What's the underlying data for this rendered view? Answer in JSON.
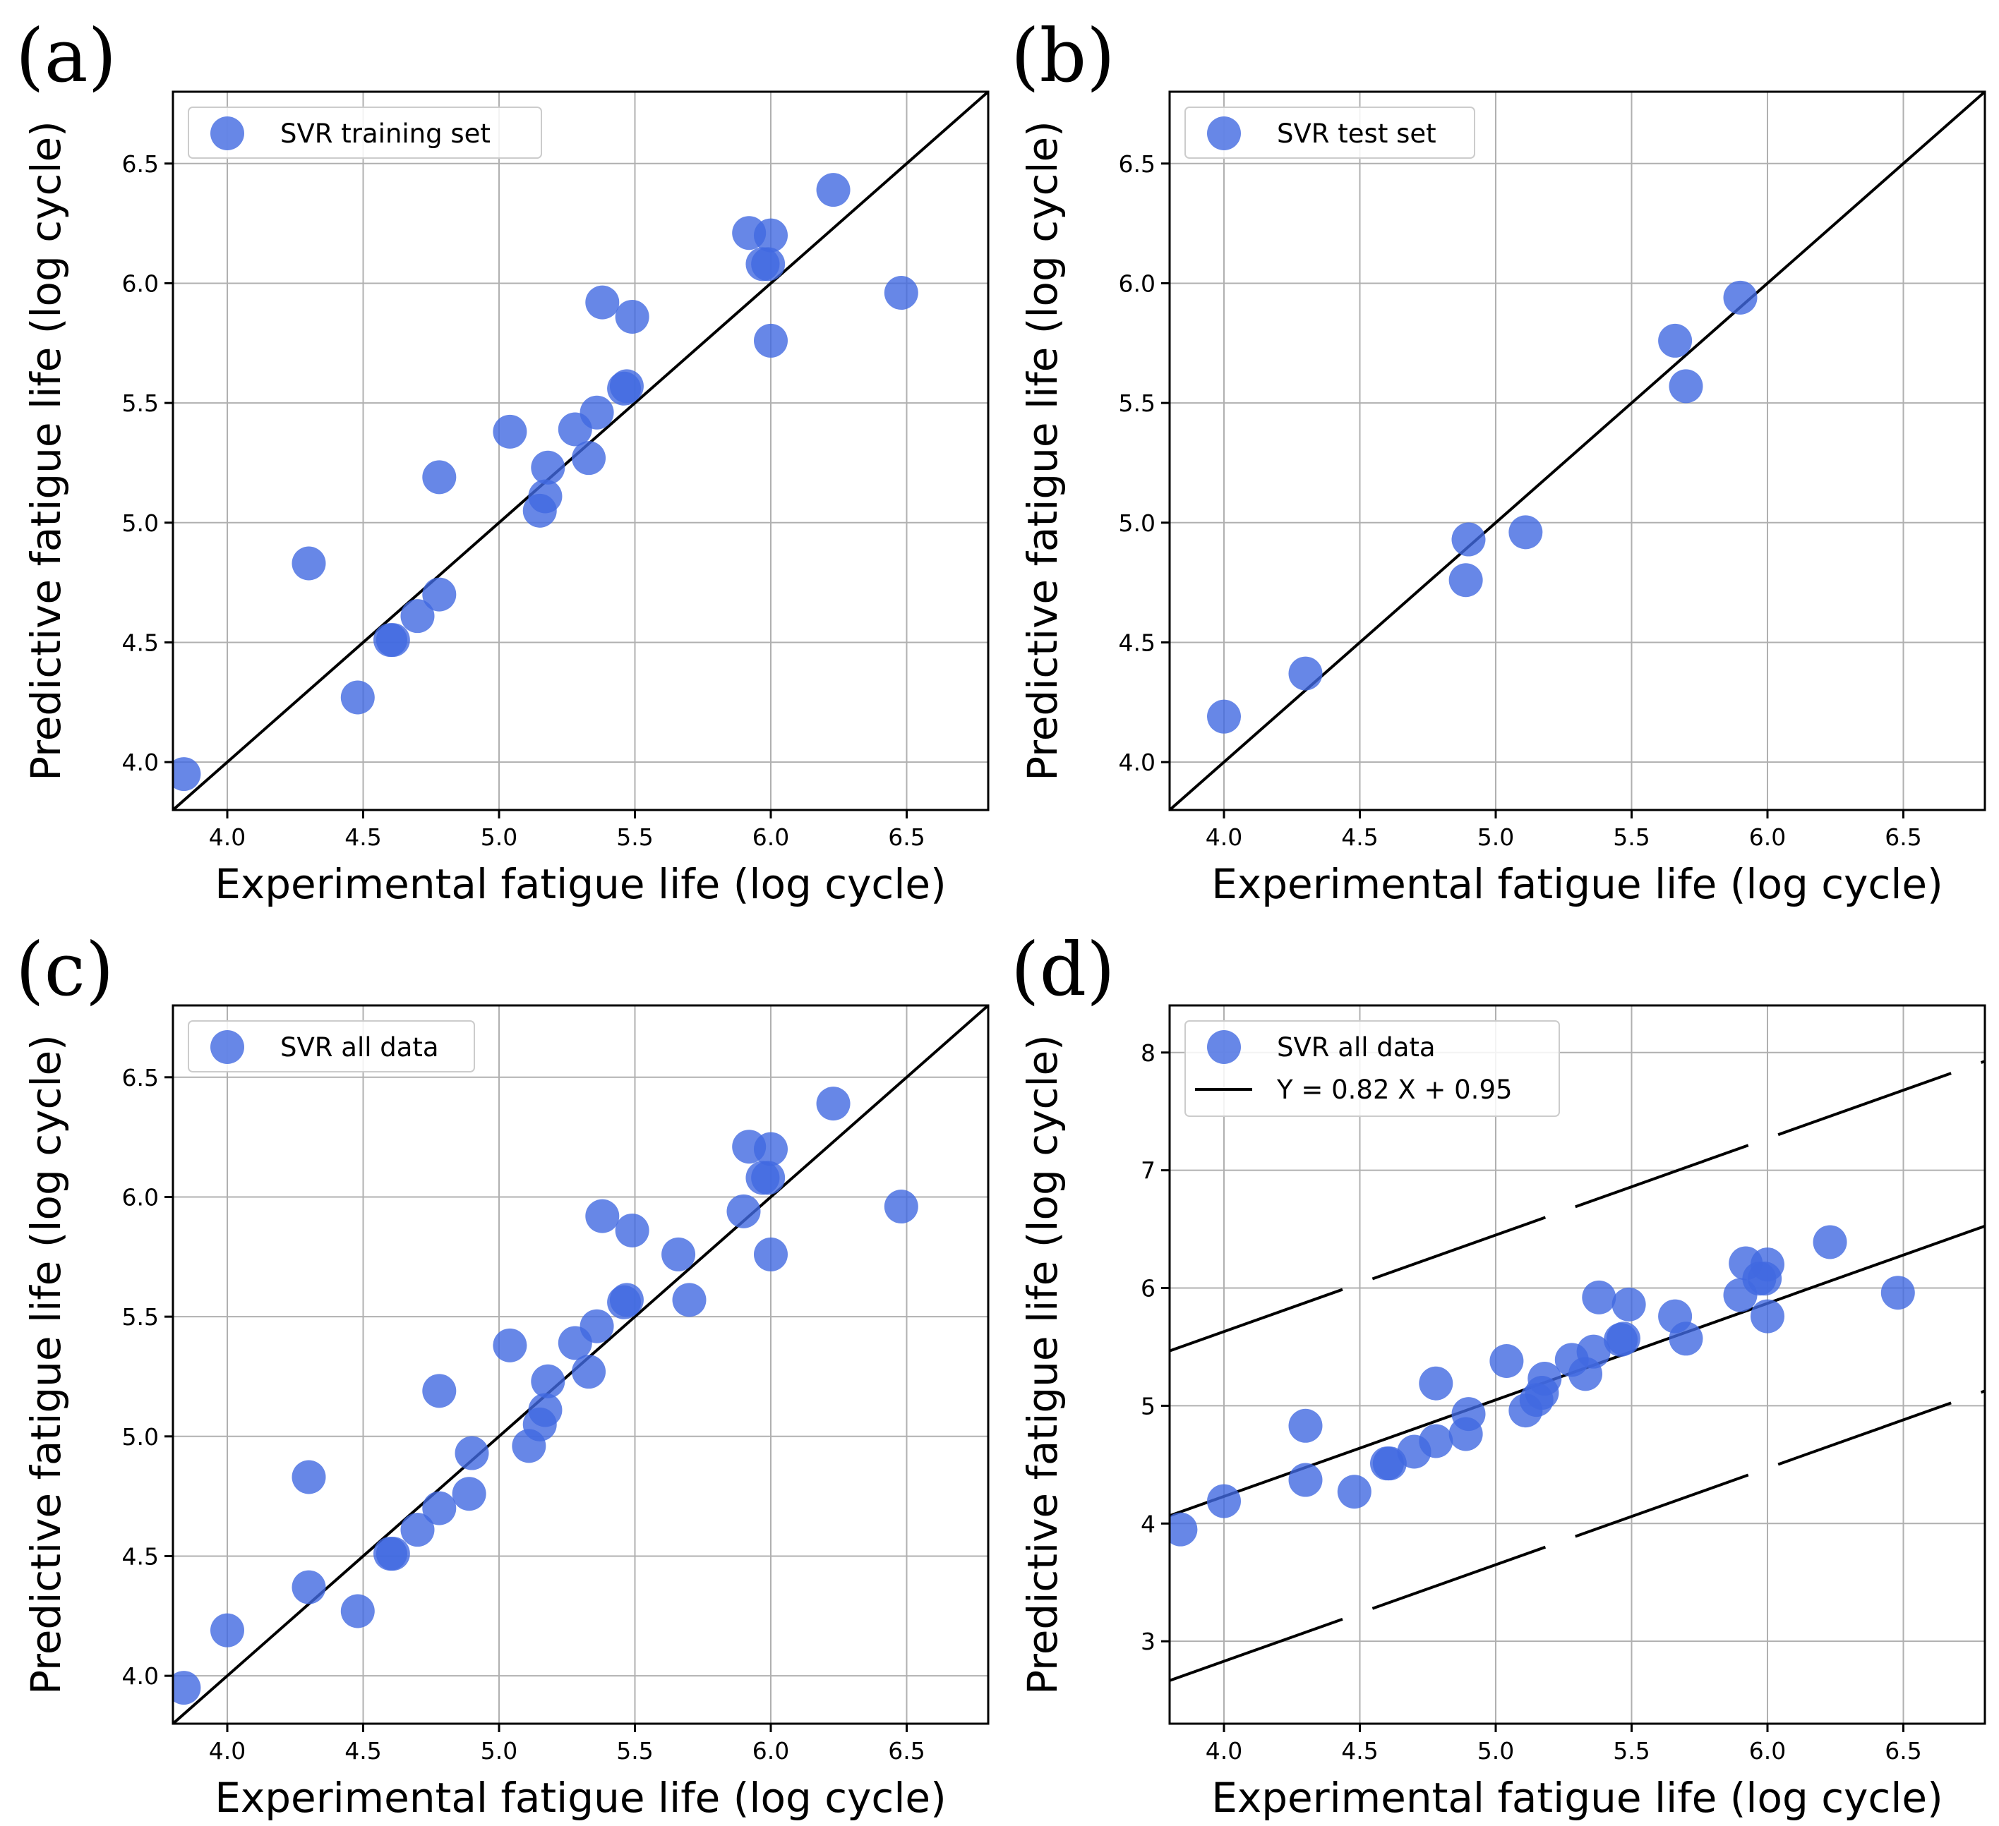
{
  "colors": {
    "point": "#4169e1",
    "line": "#000000",
    "grid": "#b0b0b0"
  },
  "chart_data": [
    {
      "panel": "(a)",
      "type": "scatter",
      "legend": [
        {
          "label": "SVR training set",
          "kind": "marker"
        }
      ],
      "legend_position": "top-left",
      "xlabel": "Experimental fatigue life (log cycle)",
      "ylabel": "Predictive fatigue life (log cycle)",
      "xlim": [
        3.8,
        6.8
      ],
      "ylim": [
        3.8,
        6.8
      ],
      "xticks": [
        "4.0",
        "4.5",
        "5.0",
        "5.5",
        "6.0",
        "6.5"
      ],
      "yticks": [
        "4.0",
        "4.5",
        "5.0",
        "5.5",
        "6.0",
        "6.5"
      ],
      "grid": true,
      "points": [
        [
          3.84,
          3.95
        ],
        [
          4.3,
          4.83
        ],
        [
          4.48,
          4.27
        ],
        [
          4.6,
          4.51
        ],
        [
          4.61,
          4.51
        ],
        [
          4.7,
          4.61
        ],
        [
          4.78,
          4.7
        ],
        [
          4.78,
          5.19
        ],
        [
          5.04,
          5.38
        ],
        [
          5.15,
          5.05
        ],
        [
          5.17,
          5.11
        ],
        [
          5.18,
          5.23
        ],
        [
          5.28,
          5.39
        ],
        [
          5.33,
          5.27
        ],
        [
          5.36,
          5.46
        ],
        [
          5.38,
          5.92
        ],
        [
          5.46,
          5.56
        ],
        [
          5.47,
          5.57
        ],
        [
          5.49,
          5.86
        ],
        [
          5.92,
          6.21
        ],
        [
          5.97,
          6.08
        ],
        [
          5.99,
          6.08
        ],
        [
          6.0,
          6.2
        ],
        [
          6.0,
          5.76
        ],
        [
          6.23,
          6.39
        ],
        [
          6.48,
          5.96
        ]
      ],
      "lines": [
        {
          "name": "y=x",
          "slope": 1,
          "intercept": 0,
          "style": "solid"
        }
      ]
    },
    {
      "panel": "(b)",
      "type": "scatter",
      "legend": [
        {
          "label": "SVR test set",
          "kind": "marker"
        }
      ],
      "legend_position": "top-left",
      "xlabel": "Experimental fatigue life (log cycle)",
      "ylabel": "Predictive fatigue life (log cycle)",
      "xlim": [
        3.8,
        6.8
      ],
      "ylim": [
        3.8,
        6.8
      ],
      "xticks": [
        "4.0",
        "4.5",
        "5.0",
        "5.5",
        "6.0",
        "6.5"
      ],
      "yticks": [
        "4.0",
        "4.5",
        "5.0",
        "5.5",
        "6.0",
        "6.5"
      ],
      "grid": true,
      "points": [
        [
          4.0,
          4.19
        ],
        [
          4.3,
          4.37
        ],
        [
          4.89,
          4.76
        ],
        [
          4.9,
          4.93
        ],
        [
          5.11,
          4.96
        ],
        [
          5.66,
          5.76
        ],
        [
          5.7,
          5.57
        ],
        [
          5.9,
          5.94
        ]
      ],
      "lines": [
        {
          "name": "y=x",
          "slope": 1,
          "intercept": 0,
          "style": "solid"
        }
      ]
    },
    {
      "panel": "(c)",
      "type": "scatter",
      "legend": [
        {
          "label": "SVR all data",
          "kind": "marker"
        }
      ],
      "legend_position": "top-left",
      "xlabel": "Experimental fatigue life (log cycle)",
      "ylabel": "Predictive fatigue life (log cycle)",
      "xlim": [
        3.8,
        6.8
      ],
      "ylim": [
        3.8,
        6.8
      ],
      "xticks": [
        "4.0",
        "4.5",
        "5.0",
        "5.5",
        "6.0",
        "6.5"
      ],
      "yticks": [
        "4.0",
        "4.5",
        "5.0",
        "5.5",
        "6.0",
        "6.5"
      ],
      "grid": true,
      "points": [
        [
          3.84,
          3.95
        ],
        [
          4.0,
          4.19
        ],
        [
          4.3,
          4.37
        ],
        [
          4.3,
          4.83
        ],
        [
          4.48,
          4.27
        ],
        [
          4.6,
          4.51
        ],
        [
          4.61,
          4.51
        ],
        [
          4.7,
          4.61
        ],
        [
          4.78,
          4.7
        ],
        [
          4.78,
          5.19
        ],
        [
          4.89,
          4.76
        ],
        [
          4.9,
          4.93
        ],
        [
          5.04,
          5.38
        ],
        [
          5.11,
          4.96
        ],
        [
          5.15,
          5.05
        ],
        [
          5.17,
          5.11
        ],
        [
          5.18,
          5.23
        ],
        [
          5.28,
          5.39
        ],
        [
          5.33,
          5.27
        ],
        [
          5.36,
          5.46
        ],
        [
          5.38,
          5.92
        ],
        [
          5.46,
          5.56
        ],
        [
          5.47,
          5.57
        ],
        [
          5.49,
          5.86
        ],
        [
          5.66,
          5.76
        ],
        [
          5.7,
          5.57
        ],
        [
          5.9,
          5.94
        ],
        [
          5.92,
          6.21
        ],
        [
          5.97,
          6.08
        ],
        [
          5.99,
          6.08
        ],
        [
          6.0,
          6.2
        ],
        [
          6.0,
          5.76
        ],
        [
          6.23,
          6.39
        ],
        [
          6.48,
          5.96
        ]
      ],
      "lines": [
        {
          "name": "y=x",
          "slope": 1,
          "intercept": 0,
          "style": "solid"
        }
      ]
    },
    {
      "panel": "(d)",
      "type": "scatter",
      "legend": [
        {
          "label": "SVR all data",
          "kind": "marker"
        },
        {
          "label": "Y = 0.82 X + 0.95",
          "kind": "line"
        }
      ],
      "legend_position": "top-left",
      "xlabel": "Experimental fatigue life (log cycle)",
      "ylabel": "Predictive fatigue life (log cycle)",
      "xlim": [
        3.8,
        6.8
      ],
      "ylim": [
        2.3,
        8.4
      ],
      "xticks": [
        "4.0",
        "4.5",
        "5.0",
        "5.5",
        "6.0",
        "6.5"
      ],
      "yticks": [
        "3",
        "4",
        "5",
        "6",
        "7",
        "8"
      ],
      "grid": true,
      "points": [
        [
          3.84,
          3.95
        ],
        [
          4.0,
          4.19
        ],
        [
          4.3,
          4.37
        ],
        [
          4.3,
          4.83
        ],
        [
          4.48,
          4.27
        ],
        [
          4.6,
          4.51
        ],
        [
          4.61,
          4.51
        ],
        [
          4.7,
          4.61
        ],
        [
          4.78,
          4.7
        ],
        [
          4.78,
          5.19
        ],
        [
          4.89,
          4.76
        ],
        [
          4.9,
          4.93
        ],
        [
          5.04,
          5.38
        ],
        [
          5.11,
          4.96
        ],
        [
          5.15,
          5.05
        ],
        [
          5.17,
          5.11
        ],
        [
          5.18,
          5.23
        ],
        [
          5.28,
          5.39
        ],
        [
          5.33,
          5.27
        ],
        [
          5.36,
          5.46
        ],
        [
          5.38,
          5.92
        ],
        [
          5.46,
          5.56
        ],
        [
          5.47,
          5.57
        ],
        [
          5.49,
          5.86
        ],
        [
          5.66,
          5.76
        ],
        [
          5.7,
          5.57
        ],
        [
          5.9,
          5.94
        ],
        [
          5.92,
          6.21
        ],
        [
          5.97,
          6.08
        ],
        [
          5.99,
          6.08
        ],
        [
          6.0,
          6.2
        ],
        [
          6.0,
          5.76
        ],
        [
          6.23,
          6.39
        ],
        [
          6.48,
          5.96
        ]
      ],
      "lines": [
        {
          "name": "fit",
          "slope": 0.82,
          "intercept": 0.95,
          "style": "solid"
        },
        {
          "name": "upper-band",
          "slope": 0.82,
          "intercept": 2.35,
          "style": "dashed"
        },
        {
          "name": "lower-band",
          "slope": 0.82,
          "intercept": -0.45,
          "style": "dashed"
        }
      ]
    }
  ]
}
